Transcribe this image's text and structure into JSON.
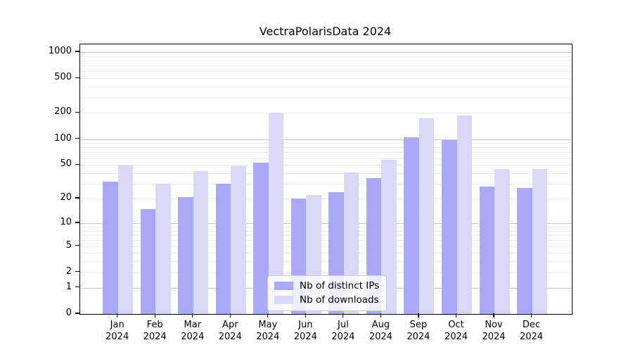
{
  "chart_data": {
    "type": "bar",
    "title": "VectraPolarisData 2024",
    "year": "2024",
    "categories": [
      "Jan",
      "Feb",
      "Mar",
      "Apr",
      "May",
      "Jun",
      "Jul",
      "Aug",
      "Sep",
      "Oct",
      "Nov",
      "Dec"
    ],
    "series": [
      {
        "name": "Nb of distinct IPs",
        "color": "#a9a9f7",
        "values": [
          32,
          15,
          21,
          30,
          53,
          20,
          24,
          35,
          104,
          98,
          28,
          27
        ]
      },
      {
        "name": "Nb of downloads",
        "color": "#d9d9f7",
        "values": [
          49,
          30,
          42,
          48,
          200,
          22,
          41,
          57,
          175,
          186,
          45,
          45
        ]
      }
    ],
    "yscale": "log10(1+v)",
    "yticks": [
      0,
      1,
      2,
      5,
      10,
      20,
      50,
      100,
      200,
      500,
      1000
    ],
    "ylim": [
      0,
      1250
    ],
    "grid": true,
    "legend_position": "bottom-center",
    "xlabel": "",
    "ylabel": ""
  },
  "colors": {
    "axis": "#000000",
    "grid_major": "#c4c4c4",
    "grid_minor": "#eaeaea",
    "background": "#ffffff",
    "legend_border": "#cccccc"
  }
}
